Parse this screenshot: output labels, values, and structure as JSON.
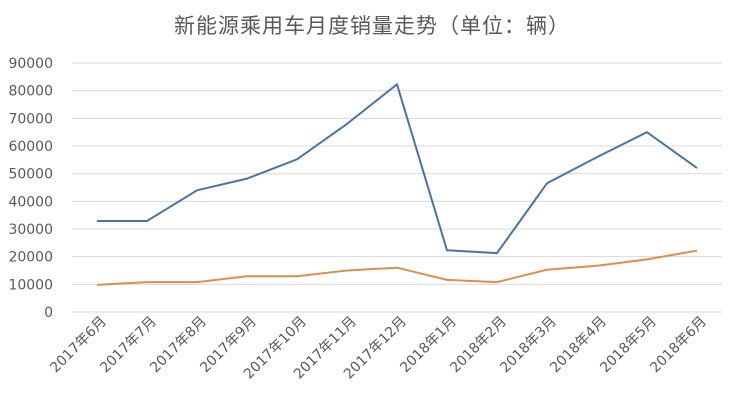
{
  "chart_data": {
    "type": "line",
    "title": "新能源乘用车月度销量走势（单位：辆）",
    "categories": [
      "2017年6月",
      "2017年7月",
      "2017年8月",
      "2017年9月",
      "2017年10月",
      "2017年11月",
      "2017年12月",
      "2018年1月",
      "2018年2月",
      "2018年3月",
      "2018年4月",
      "2018年5月",
      "2018年6月"
    ],
    "series": [
      {
        "values": [
          32900,
          32900,
          44000,
          48200,
          55200,
          68000,
          82300,
          22300,
          21300,
          46500,
          56000,
          65000,
          52000
        ],
        "color": "#4a74a6"
      },
      {
        "values": [
          9800,
          10800,
          10800,
          12900,
          12900,
          15000,
          16000,
          11600,
          10800,
          15300,
          16700,
          19000,
          22200
        ],
        "color": "#e08f4a"
      }
    ],
    "yticks": [
      "0",
      "10000",
      "20000",
      "30000",
      "40000",
      "50000",
      "60000",
      "70000",
      "80000",
      "90000"
    ],
    "ylim": [
      0,
      90000
    ],
    "grid": true
  }
}
